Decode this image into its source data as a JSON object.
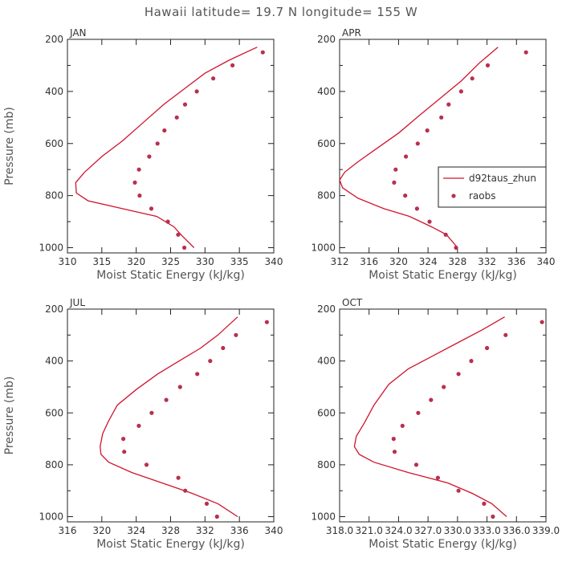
{
  "figure": {
    "title": "Hawaii  latitude= 19.7 N longitude= 155 W",
    "colors": {
      "model": "#d0142c",
      "obs": "#b8304e",
      "frame": "#222222",
      "text": "#555555"
    }
  },
  "chart_data": [
    {
      "type": "line",
      "title": "JAN",
      "xlabel": "Moist Static Energy (kJ/kg)",
      "ylabel": "Pressure (mb)",
      "xlim": [
        310,
        340
      ],
      "ylim": [
        1020,
        200
      ],
      "xticks": [
        "310",
        "315",
        "320",
        "325",
        "330",
        "335",
        "340"
      ],
      "yticks": [
        "200",
        "400",
        "600",
        "800",
        "1000"
      ],
      "series": [
        {
          "name": "d92taus_zhun",
          "style": "line",
          "x": [
            337.6,
            333.5,
            330.0,
            327.0,
            324.0,
            321.0,
            318.0,
            315.0,
            312.5,
            311.2,
            311.3,
            313.0,
            318.0,
            323.0,
            325.5,
            326.5,
            328.4
          ],
          "y": [
            230,
            280,
            330,
            390,
            450,
            520,
            590,
            650,
            710,
            750,
            790,
            820,
            850,
            880,
            920,
            950,
            1000
          ]
        },
        {
          "name": "raobs",
          "style": "markers",
          "x": [
            338.4,
            334.0,
            331.2,
            328.8,
            327.1,
            325.9,
            324.1,
            323.1,
            321.9,
            320.4,
            319.8,
            320.5,
            322.2,
            324.6,
            326.1,
            327.0
          ],
          "y": [
            250,
            300,
            350,
            400,
            450,
            500,
            550,
            600,
            650,
            700,
            750,
            800,
            850,
            900,
            950,
            1000
          ]
        }
      ]
    },
    {
      "type": "line",
      "title": "APR",
      "xlabel": "Moist Static Energy (kJ/kg)",
      "ylabel": "Pressure (mb)",
      "xlim": [
        312,
        340
      ],
      "ylim": [
        1020,
        200
      ],
      "xticks": [
        "312",
        "316",
        "320",
        "324",
        "328",
        "332",
        "336",
        "340"
      ],
      "yticks": [
        "200",
        "400",
        "600",
        "800",
        "1000"
      ],
      "legend": {
        "position": "right",
        "entries": [
          "d92taus_zhun",
          "raobs"
        ]
      },
      "series": [
        {
          "name": "d92taus_zhun",
          "style": "line",
          "x": [
            333.5,
            331.0,
            328.5,
            325.5,
            322.5,
            320.0,
            317.0,
            314.5,
            312.7,
            312.0,
            312.4,
            314.5,
            318.0,
            321.5,
            324.5,
            326.5,
            328.0
          ],
          "y": [
            230,
            290,
            360,
            430,
            500,
            560,
            620,
            670,
            710,
            740,
            770,
            810,
            850,
            880,
            920,
            950,
            1000
          ]
        },
        {
          "name": "raobs",
          "style": "markers",
          "x": [
            337.3,
            332.1,
            330.0,
            328.5,
            326.8,
            325.8,
            323.9,
            322.6,
            321.0,
            319.6,
            319.4,
            320.9,
            322.5,
            324.2,
            326.4,
            327.8
          ],
          "y": [
            250,
            300,
            350,
            400,
            450,
            500,
            550,
            600,
            650,
            700,
            750,
            800,
            850,
            900,
            950,
            1000
          ]
        }
      ]
    },
    {
      "type": "line",
      "title": "JUL",
      "xlabel": "Moist Static Energy (kJ/kg)",
      "ylabel": "Pressure (mb)",
      "xlim": [
        316,
        340
      ],
      "ylim": [
        1020,
        200
      ],
      "xticks": [
        "316",
        "320",
        "324",
        "328",
        "332",
        "336",
        "340"
      ],
      "yticks": [
        "200",
        "400",
        "600",
        "800",
        "1000"
      ],
      "series": [
        {
          "name": "d92taus_zhun",
          "style": "line",
          "x": [
            335.8,
            333.5,
            331.5,
            329.0,
            326.5,
            324.0,
            321.8,
            320.8,
            320.1,
            319.8,
            319.9,
            320.8,
            323.5,
            327.0,
            330.5,
            333.5,
            335.8
          ],
          "y": [
            230,
            300,
            350,
            400,
            450,
            510,
            570,
            630,
            680,
            730,
            760,
            790,
            830,
            870,
            910,
            950,
            1000
          ]
        },
        {
          "name": "raobs",
          "style": "markers",
          "x": [
            339.2,
            335.6,
            334.1,
            332.6,
            331.1,
            329.1,
            327.5,
            325.8,
            324.3,
            322.5,
            322.6,
            325.2,
            328.9,
            329.7,
            332.2,
            333.4
          ],
          "y": [
            250,
            300,
            350,
            400,
            450,
            500,
            550,
            600,
            650,
            700,
            750,
            800,
            850,
            900,
            950,
            1000
          ]
        }
      ]
    },
    {
      "type": "line",
      "title": "OCT",
      "xlabel": "Moist Static Energy (kJ/kg)",
      "ylabel": "Pressure (mb)",
      "xlim": [
        318,
        339
      ],
      "ylim": [
        1020,
        200
      ],
      "xticks": [
        "318.0",
        "321.0",
        "324.0",
        "327.0",
        "330.0",
        "333.0",
        "336.0",
        "339.0"
      ],
      "yticks": [
        "200",
        "400",
        "600",
        "800",
        "1000"
      ],
      "series": [
        {
          "name": "d92taus_zhun",
          "style": "line",
          "x": [
            334.8,
            332.5,
            330.0,
            327.5,
            325.0,
            323.0,
            321.5,
            320.5,
            319.7,
            319.5,
            320.0,
            321.5,
            325.0,
            329.0,
            331.5,
            333.5,
            335.0
          ],
          "y": [
            230,
            280,
            330,
            380,
            430,
            490,
            570,
            640,
            690,
            730,
            760,
            790,
            830,
            870,
            910,
            950,
            1000
          ]
        },
        {
          "name": "raobs",
          "style": "markers",
          "x": [
            338.6,
            334.9,
            333.0,
            331.4,
            330.1,
            328.6,
            327.3,
            326.0,
            324.4,
            323.5,
            323.6,
            325.8,
            328.0,
            330.1,
            332.7,
            333.6
          ],
          "y": [
            250,
            300,
            350,
            400,
            450,
            500,
            550,
            600,
            650,
            700,
            750,
            800,
            850,
            900,
            950,
            1000
          ]
        }
      ]
    }
  ]
}
